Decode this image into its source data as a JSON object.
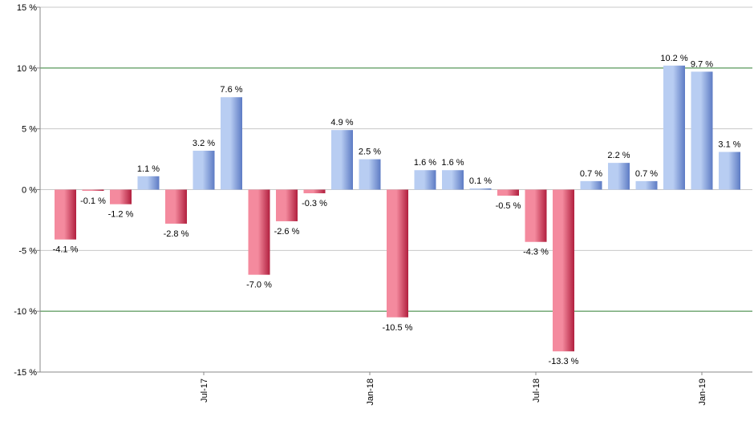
{
  "chart_data": {
    "type": "bar",
    "title": "",
    "xlabel": "",
    "ylabel": "",
    "ylim": [
      -15,
      15
    ],
    "yticks": [
      15,
      10,
      5,
      0,
      -5,
      -10,
      -15
    ],
    "ytick_labels": [
      "15 %",
      "10 %",
      "5 %",
      "0 %",
      "-5 %",
      "-10 %",
      "-15 %"
    ],
    "highlight_gridlines": [
      10,
      -10
    ],
    "grid": true,
    "legend": "none",
    "values": [
      -4.1,
      -0.1,
      -1.2,
      1.1,
      -2.8,
      3.2,
      7.6,
      -7.0,
      -2.6,
      -0.3,
      4.9,
      2.5,
      -10.5,
      1.6,
      1.6,
      0.1,
      -0.5,
      -4.3,
      -13.3,
      0.7,
      2.2,
      0.7,
      10.2,
      9.7,
      3.1
    ],
    "labels": [
      "-4.1 %",
      "-0.1 %",
      "-1.2 %",
      "1.1 %",
      "-2.8 %",
      "3.2 %",
      "7.6 %",
      "-7.0 %",
      "-2.6 %",
      "-0.3 %",
      "4.9 %",
      "2.5 %",
      "-10.5 %",
      "1.6 %",
      "1.6 %",
      "0.1 %",
      "-0.5 %",
      "-4.3 %",
      "-13.3 %",
      "0.7 %",
      "2.2 %",
      "0.7 %",
      "10.2 %",
      "9.7 %",
      "3.1 %"
    ],
    "x_tick_labels": [
      {
        "bar_index": 5,
        "label": "Jul-17"
      },
      {
        "bar_index": 11,
        "label": "Jan-18"
      },
      {
        "bar_index": 17,
        "label": "Jul-18"
      },
      {
        "bar_index": 23,
        "label": "Jan-19"
      }
    ],
    "colors": {
      "positive_light": "#b8cdf2",
      "positive_dark": "#5d7bc4",
      "negative_light": "#f48a9e",
      "negative_dark": "#b11f3e",
      "grid": "#c8c8c8",
      "highlight_grid": "#2e7d32",
      "axis": "#888888"
    }
  }
}
